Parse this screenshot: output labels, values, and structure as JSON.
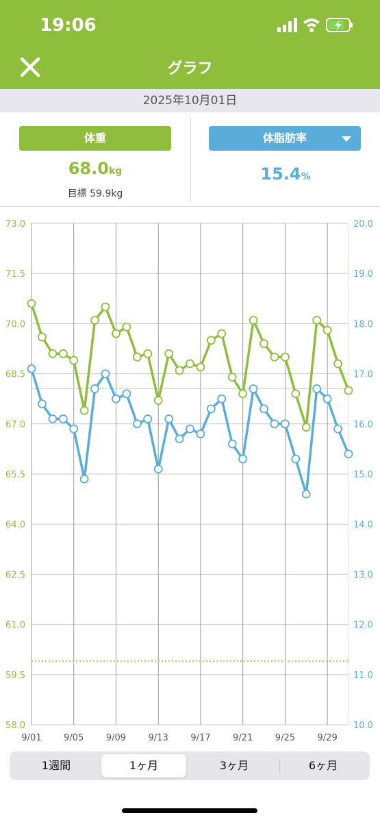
{
  "status_bar": {
    "time": "19:06",
    "battery": "charging"
  },
  "header": {
    "title": "グラフ",
    "close_icon": "close-icon"
  },
  "date": "2025年10月01日",
  "weight_panel": {
    "label": "体重",
    "value": "68.0",
    "unit": "kg",
    "goal": "目標 59.9kg"
  },
  "fat_panel": {
    "label": "体脂肪率",
    "value": "15.4",
    "unit": "%",
    "dropdown_icon": "triangle-down-icon"
  },
  "range_tabs": {
    "items": [
      "1週間",
      "1ヶ月",
      "3ヶ月",
      "6ヶ月"
    ],
    "selected": "1ヶ月"
  },
  "colors": {
    "weight": "#8fbe3c",
    "fat": "#5aadda",
    "goal_line": "#b6d36a",
    "fat_ref_line": "#f0cf9f"
  },
  "chart_data": {
    "type": "line",
    "x": [
      "9/01",
      "9/02",
      "9/03",
      "9/04",
      "9/05",
      "9/06",
      "9/07",
      "9/08",
      "9/09",
      "9/10",
      "9/11",
      "9/12",
      "9/13",
      "9/14",
      "9/15",
      "9/16",
      "9/17",
      "9/18",
      "9/19",
      "9/20",
      "9/21",
      "9/22",
      "9/23",
      "9/24",
      "9/25",
      "9/26",
      "9/27",
      "9/28",
      "9/29",
      "9/30",
      "10/01"
    ],
    "x_tick_labels": [
      "9/01",
      "9/05",
      "9/09",
      "9/13",
      "9/17",
      "9/21",
      "9/25",
      "9/29"
    ],
    "series": [
      {
        "name": "体重",
        "axis": "left",
        "values": [
          70.6,
          69.6,
          69.1,
          69.1,
          68.9,
          67.4,
          70.1,
          70.5,
          69.7,
          69.9,
          69.0,
          69.1,
          67.7,
          69.1,
          68.6,
          68.8,
          68.7,
          69.5,
          69.7,
          68.4,
          67.9,
          70.1,
          69.4,
          69.0,
          69.0,
          67.9,
          66.9,
          70.1,
          69.8,
          68.8,
          68.0
        ]
      },
      {
        "name": "体脂肪率",
        "axis": "right",
        "values": [
          17.1,
          16.4,
          16.1,
          16.1,
          15.9,
          14.9,
          16.7,
          17.0,
          16.5,
          16.6,
          16.0,
          16.1,
          15.1,
          16.1,
          15.7,
          15.9,
          15.8,
          16.3,
          16.5,
          15.6,
          15.3,
          16.7,
          16.3,
          16.0,
          16.0,
          15.3,
          14.6,
          16.7,
          16.5,
          15.9,
          15.4
        ]
      }
    ],
    "y_left": {
      "range": [
        58.0,
        73.0
      ],
      "ticks": [
        "58.0",
        "59.5",
        "61.0",
        "62.5",
        "64.0",
        "65.5",
        "67.0",
        "68.5",
        "70.0",
        "71.5",
        "73.0"
      ]
    },
    "y_right": {
      "range": [
        10.0,
        20.0
      ],
      "ticks": [
        "10.0",
        "11.0",
        "12.0",
        "13.0",
        "14.0",
        "15.0",
        "16.0",
        "17.0",
        "18.0",
        "19.0",
        "20.0"
      ]
    },
    "goal_weight": 59.9,
    "fat_reference": 16.7,
    "grid": true
  }
}
